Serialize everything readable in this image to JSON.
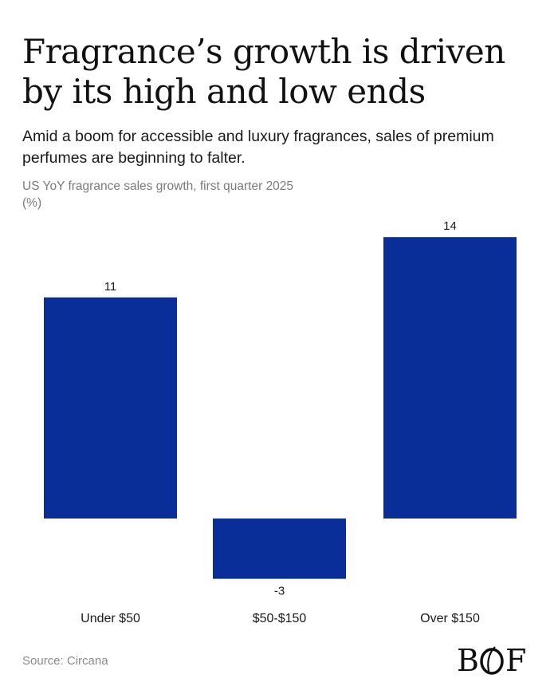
{
  "header": {
    "title": "Fragrance’s growth is driven by its high and low ends",
    "subtitle": "Amid a boom for accessible and luxury fragrances, sales of premium perfumes are beginning to falter.",
    "chart_label": "US YoY fragrance sales growth, first quarter 2025",
    "unit": "(%)"
  },
  "footer": {
    "source": "Source: Circana",
    "logo": "BOF"
  },
  "colors": {
    "bar": "#0a2e98",
    "text": "#1a1a1a",
    "muted": "#7a7a7a"
  },
  "chart_data": {
    "type": "bar",
    "title": "US YoY fragrance sales growth, first quarter 2025",
    "ylabel": "(%)",
    "categories": [
      "Under $50",
      "$50-$150",
      "Over $150"
    ],
    "values": [
      11,
      -3,
      14
    ],
    "ylim": [
      -3,
      14
    ],
    "grid": false,
    "data_labels": true
  }
}
